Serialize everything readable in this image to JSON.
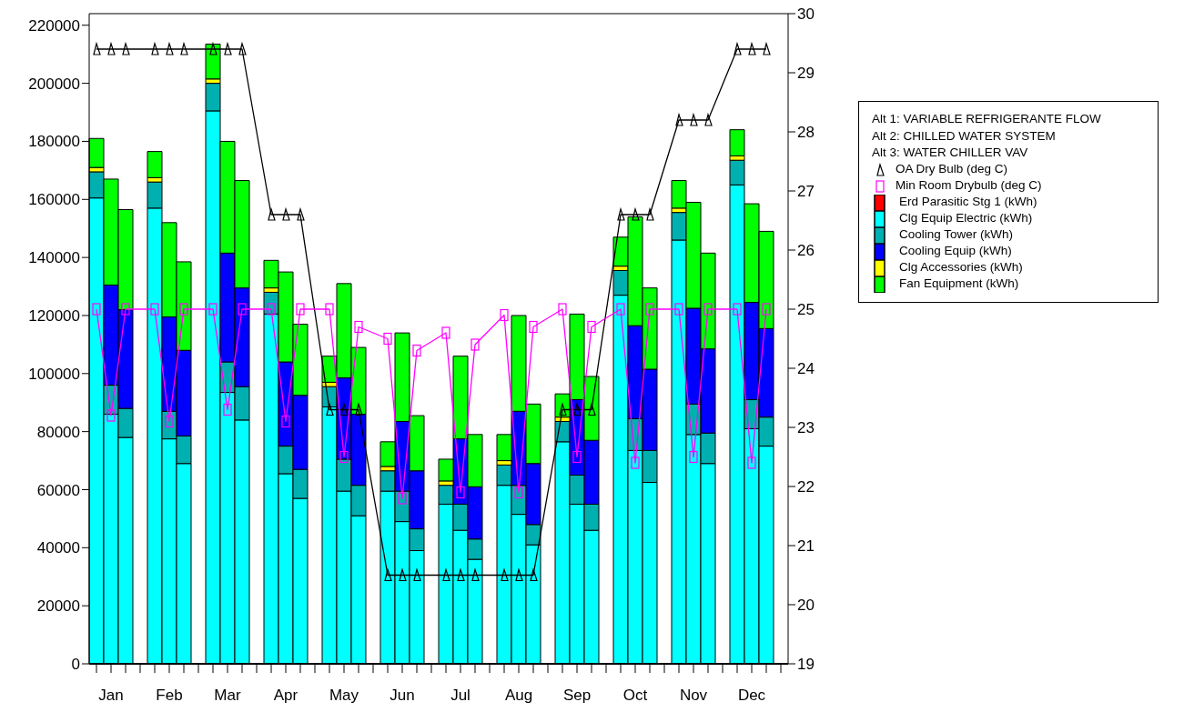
{
  "chart_data": {
    "type": "bar",
    "stacked": true,
    "categories": [
      null,
      "Jan",
      null,
      null,
      null,
      "Feb",
      null,
      null,
      null,
      "Mar",
      null,
      null,
      null,
      "Apr",
      null,
      null,
      null,
      "May",
      null,
      null,
      null,
      "Jun",
      null,
      null,
      null,
      "Jul",
      null,
      null,
      null,
      "Aug",
      null,
      null,
      null,
      "Sep",
      null,
      null,
      null,
      "Oct",
      null,
      null,
      null,
      "Nov",
      null,
      null,
      null,
      "Dec",
      null,
      null
    ],
    "ylim": [
      0,
      224000
    ],
    "yticks": [
      0,
      20000,
      40000,
      60000,
      80000,
      100000,
      120000,
      140000,
      160000,
      180000,
      200000,
      220000
    ],
    "y2lim": [
      19,
      30
    ],
    "y2ticks": [
      19,
      20,
      21,
      22,
      23,
      24,
      25,
      26,
      27,
      28,
      29,
      30
    ],
    "grid": false,
    "legend": "right",
    "annotations": [
      "Alt 1: VARIABLE REFRIGERANTE FLOW",
      "Alt 2: CHILLED WATER SYSTEM",
      "Alt 3: WATER CHILLER VAV"
    ],
    "series": [
      {
        "name": "OA Dry Bulb (deg C)",
        "type": "line",
        "axis": "y2",
        "marker": "triangle",
        "color": "#000000",
        "values": [
          29.4,
          29.4,
          29.4,
          null,
          29.4,
          29.4,
          29.4,
          null,
          29.4,
          29.4,
          29.4,
          null,
          26.6,
          26.6,
          26.6,
          null,
          23.3,
          23.3,
          23.3,
          null,
          20.5,
          20.5,
          20.5,
          null,
          20.5,
          20.5,
          20.5,
          null,
          20.5,
          20.5,
          20.5,
          null,
          23.3,
          23.3,
          23.3,
          null,
          26.6,
          26.6,
          26.6,
          null,
          28.2,
          28.2,
          28.2,
          null,
          29.4,
          29.4,
          29.4,
          null
        ]
      },
      {
        "name": "Min Room Drybulb (deg C)",
        "type": "line",
        "axis": "y2",
        "marker": "square",
        "color": "#ff00ff",
        "values": [
          25.0,
          23.2,
          25.0,
          null,
          25.0,
          23.1,
          25.0,
          null,
          25.0,
          23.3,
          25.0,
          null,
          25.0,
          23.1,
          25.0,
          null,
          25.0,
          22.5,
          24.7,
          null,
          24.5,
          21.8,
          24.3,
          null,
          24.6,
          21.9,
          24.4,
          null,
          24.9,
          21.9,
          24.7,
          null,
          25.0,
          22.5,
          24.7,
          null,
          25.0,
          22.4,
          25.0,
          null,
          25.0,
          22.5,
          25.0,
          null,
          25.0,
          22.4,
          25.0,
          null
        ]
      },
      {
        "name": "Erd Parasitic Stg 1 (kWh)",
        "type": "bar",
        "color": "#ff0000",
        "values": [
          0,
          0,
          0,
          null,
          0,
          0,
          0,
          null,
          0,
          0,
          0,
          null,
          0,
          0,
          0,
          null,
          0,
          0,
          0,
          null,
          0,
          0,
          0,
          null,
          0,
          0,
          0,
          null,
          0,
          0,
          0,
          null,
          0,
          0,
          0,
          null,
          0,
          0,
          0,
          null,
          0,
          0,
          0,
          null,
          0,
          0,
          0,
          null
        ]
      },
      {
        "name": "Clg Equip Electric (kWh)",
        "type": "bar",
        "color": "#00ffff",
        "values": [
          160500,
          86000,
          78000,
          null,
          157000,
          77500,
          69000,
          null,
          190500,
          93500,
          84000,
          null,
          120500,
          65500,
          57000,
          null,
          88500,
          59500,
          51000,
          null,
          59500,
          49000,
          39000,
          null,
          55000,
          46000,
          36000,
          null,
          61500,
          51500,
          41000,
          null,
          76500,
          55000,
          46000,
          null,
          127000,
          73500,
          62500,
          null,
          146000,
          79000,
          69000,
          null,
          165000,
          81000,
          75000,
          null
        ]
      },
      {
        "name": "Cooling Tower (kWh)",
        "type": "bar",
        "color": "#00b0b0",
        "values": [
          9000,
          10000,
          10000,
          null,
          9000,
          9500,
          9500,
          null,
          9500,
          10500,
          11500,
          null,
          7500,
          9500,
          10000,
          null,
          7000,
          11000,
          10500,
          null,
          7000,
          10500,
          7500,
          null,
          6500,
          9000,
          7000,
          null,
          7000,
          10000,
          7000,
          null,
          7000,
          10000,
          9000,
          null,
          8500,
          11000,
          11000,
          null,
          9500,
          10500,
          10500,
          null,
          8500,
          10000,
          10000,
          null
        ]
      },
      {
        "name": "Cooling Equip (kWh)",
        "type": "bar",
        "color": "#0000ff",
        "values": [
          0,
          34500,
          34000,
          null,
          0,
          32500,
          29500,
          null,
          0,
          37500,
          34000,
          null,
          0,
          29000,
          25500,
          null,
          0,
          28000,
          24500,
          null,
          0,
          24000,
          20000,
          null,
          0,
          22500,
          18000,
          null,
          0,
          25500,
          21000,
          null,
          0,
          26000,
          22000,
          null,
          0,
          32000,
          28000,
          null,
          0,
          33000,
          29000,
          null,
          0,
          33500,
          30500,
          null
        ]
      },
      {
        "name": "Clg Accessories (kWh)",
        "type": "bar",
        "color": "#ffff00",
        "values": [
          1500,
          0,
          0,
          null,
          1500,
          0,
          0,
          null,
          1500,
          0,
          0,
          null,
          1500,
          0,
          0,
          null,
          1500,
          0,
          0,
          null,
          1500,
          0,
          0,
          null,
          1500,
          0,
          0,
          null,
          1500,
          0,
          0,
          null,
          1500,
          0,
          0,
          null,
          1500,
          0,
          0,
          null,
          1500,
          0,
          0,
          null,
          1500,
          0,
          0,
          null
        ]
      },
      {
        "name": "Fan Equipment (kWh)",
        "type": "bar",
        "color": "#00ff00",
        "values": [
          10000,
          36500,
          34500,
          null,
          9000,
          32500,
          30500,
          null,
          12000,
          38500,
          37000,
          null,
          9500,
          31000,
          24500,
          null,
          9000,
          32500,
          23000,
          null,
          8500,
          30500,
          19000,
          null,
          7500,
          28500,
          18000,
          null,
          9000,
          33000,
          20500,
          null,
          8000,
          29500,
          22000,
          null,
          10000,
          37500,
          28000,
          null,
          9500,
          36500,
          33000,
          null,
          9000,
          34000,
          33500,
          null
        ]
      }
    ]
  }
}
